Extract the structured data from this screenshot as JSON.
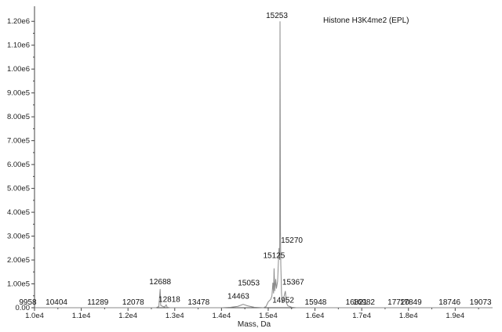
{
  "chart_data": {
    "type": "line",
    "title": "Histone H3K4me2 (EPL)",
    "xlabel": "Mass, Da",
    "ylabel": "",
    "xlim": [
      10000,
      19800
    ],
    "ylim": [
      0,
      1250000
    ],
    "x_ticks": [
      {
        "value": 10000,
        "label": "1.0e4"
      },
      {
        "value": 11000,
        "label": "1.1e4"
      },
      {
        "value": 12000,
        "label": "1.2e4"
      },
      {
        "value": 13000,
        "label": "1.3e4"
      },
      {
        "value": 14000,
        "label": "1.4e4"
      },
      {
        "value": 15000,
        "label": "1.5e4"
      },
      {
        "value": 16000,
        "label": "1.6e4"
      },
      {
        "value": 17000,
        "label": "1.7e4"
      },
      {
        "value": 18000,
        "label": "1.8e4"
      },
      {
        "value": 19000,
        "label": "1.9e4"
      }
    ],
    "y_ticks": [
      {
        "value": 0,
        "label": "0.00"
      },
      {
        "value": 100000,
        "label": "1.00e5"
      },
      {
        "value": 200000,
        "label": "2.00e5"
      },
      {
        "value": 300000,
        "label": "3.00e5"
      },
      {
        "value": 400000,
        "label": "4.00e5"
      },
      {
        "value": 500000,
        "label": "5.00e5"
      },
      {
        "value": 600000,
        "label": "6.00e5"
      },
      {
        "value": 700000,
        "label": "7.00e5"
      },
      {
        "value": 800000,
        "label": "8.00e5"
      },
      {
        "value": 900000,
        "label": "9.00e5"
      },
      {
        "value": 1000000,
        "label": "1.00e6"
      },
      {
        "value": 1100000,
        "label": "1.10e6"
      },
      {
        "value": 1200000,
        "label": "1.20e6"
      }
    ],
    "series": [
      {
        "points": [
          [
            10000,
            0
          ],
          [
            12600,
            0
          ],
          [
            12660,
            5000
          ],
          [
            12688,
            78000
          ],
          [
            12700,
            10000
          ],
          [
            12740,
            6000
          ],
          [
            12780,
            3000
          ],
          [
            12818,
            12000
          ],
          [
            12840,
            2000
          ],
          [
            12900,
            0
          ],
          [
            14000,
            0
          ],
          [
            14200,
            2000
          ],
          [
            14350,
            6000
          ],
          [
            14463,
            14000
          ],
          [
            14560,
            8000
          ],
          [
            14700,
            2000
          ],
          [
            14900,
            0
          ],
          [
            14952,
            5000
          ],
          [
            15000,
            25000
          ],
          [
            15053,
            35000
          ],
          [
            15080,
            50000
          ],
          [
            15100,
            105000
          ],
          [
            15115,
            60000
          ],
          [
            15125,
            165000
          ],
          [
            15140,
            70000
          ],
          [
            15160,
            120000
          ],
          [
            15175,
            80000
          ],
          [
            15200,
            110000
          ],
          [
            15230,
            250000
          ],
          [
            15245,
            200000
          ],
          [
            15253,
            1200000
          ],
          [
            15262,
            320000
          ],
          [
            15270,
            180000
          ],
          [
            15285,
            60000
          ],
          [
            15300,
            20000
          ],
          [
            15330,
            40000
          ],
          [
            15367,
            70000
          ],
          [
            15390,
            20000
          ],
          [
            15420,
            8000
          ],
          [
            15500,
            2000
          ],
          [
            15600,
            0
          ],
          [
            19800,
            0
          ]
        ]
      }
    ],
    "peak_labels": [
      {
        "text": "9958",
        "x": 9958,
        "y": 0
      },
      {
        "text": "10404",
        "x": 10404,
        "y": 0
      },
      {
        "text": "11289",
        "x": 11289,
        "y": 0
      },
      {
        "text": "12078",
        "x": 12078,
        "y": 0
      },
      {
        "text": "12688",
        "x": 12688,
        "y": 78000
      },
      {
        "text": "12818",
        "x": 12818,
        "y": 12000
      },
      {
        "text": "13478",
        "x": 13478,
        "y": 0
      },
      {
        "text": "14463",
        "x": 14463,
        "y": 14000
      },
      {
        "text": "15053",
        "x": 15053,
        "y": 35000
      },
      {
        "text": "14952",
        "x": 14952,
        "y": 5000
      },
      {
        "text": "15125",
        "x": 15125,
        "y": 165000
      },
      {
        "text": "15253",
        "x": 15253,
        "y": 1200000
      },
      {
        "text": "15270",
        "x": 15270,
        "y": 180000
      },
      {
        "text": "15367",
        "x": 15367,
        "y": 70000
      },
      {
        "text": "15948",
        "x": 15948,
        "y": 0
      },
      {
        "text": "16821",
        "x": 16821,
        "y": 0
      },
      {
        "text": "16982",
        "x": 16982,
        "y": 0
      },
      {
        "text": "17720",
        "x": 17720,
        "y": 0
      },
      {
        "text": "17849",
        "x": 17849,
        "y": 0
      },
      {
        "text": "18746",
        "x": 18746,
        "y": 0
      },
      {
        "text": "19073",
        "x": 19073,
        "y": 0
      }
    ],
    "grid": false,
    "line_color": "#8a8a8a",
    "legend": "none"
  }
}
